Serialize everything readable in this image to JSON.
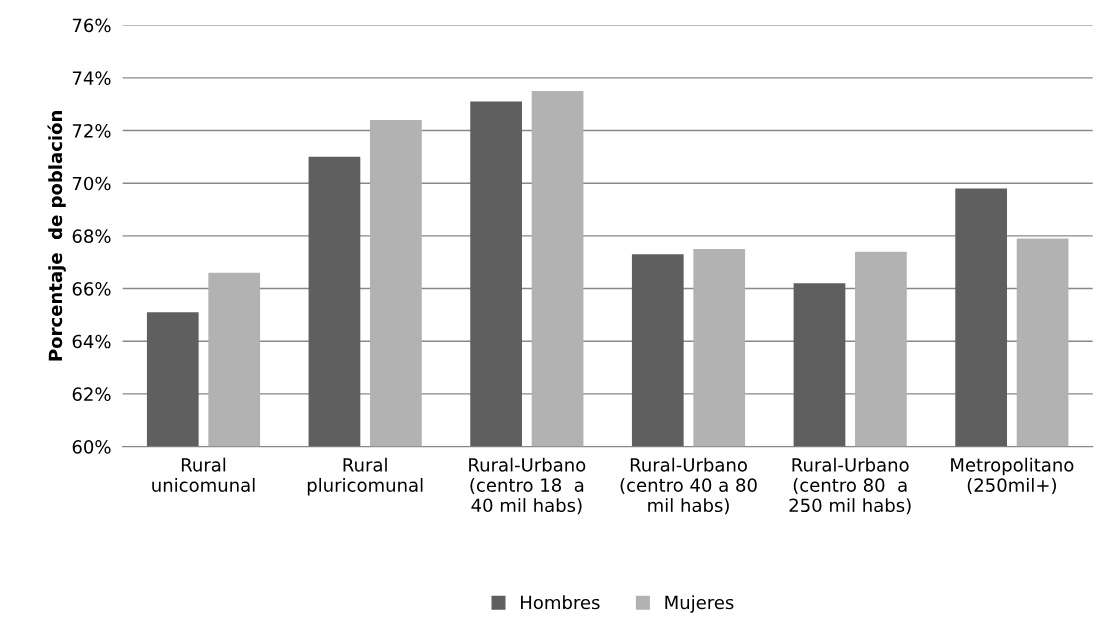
{
  "chart_data": {
    "type": "bar",
    "ylabel": "Porcentaje  de población",
    "categories": [
      "Rural\nunicomunal",
      "Rural\npluricomunal",
      "Rural-Urbano\n(centro 18  a\n40 mil habs)",
      "Rural-Urbano\n(centro 40 a 80\nmil habs)",
      "Rural-Urbano\n(centro 80  a\n250 mil habs)",
      "Metropolitano\n(250mil+)"
    ],
    "series": [
      {
        "name": "Hombres",
        "color": "#5f5f5f",
        "values": [
          65.1,
          71.0,
          73.1,
          67.3,
          66.2,
          69.8
        ]
      },
      {
        "name": "Mujeres",
        "color": "#b2b2b2",
        "values": [
          66.6,
          72.4,
          73.5,
          67.5,
          67.4,
          67.9
        ]
      }
    ],
    "ylim": [
      60,
      76
    ],
    "yticks": [
      {
        "value": 60,
        "label": "60%"
      },
      {
        "value": 62,
        "label": "62%"
      },
      {
        "value": 64,
        "label": "64%"
      },
      {
        "value": 66,
        "label": "66%"
      },
      {
        "value": 68,
        "label": "68%"
      },
      {
        "value": 70,
        "label": "70%"
      },
      {
        "value": 72,
        "label": "72%"
      },
      {
        "value": 74,
        "label": "74%"
      },
      {
        "value": 76,
        "label": "76%"
      }
    ],
    "grid": "y",
    "legend": "bottom"
  }
}
